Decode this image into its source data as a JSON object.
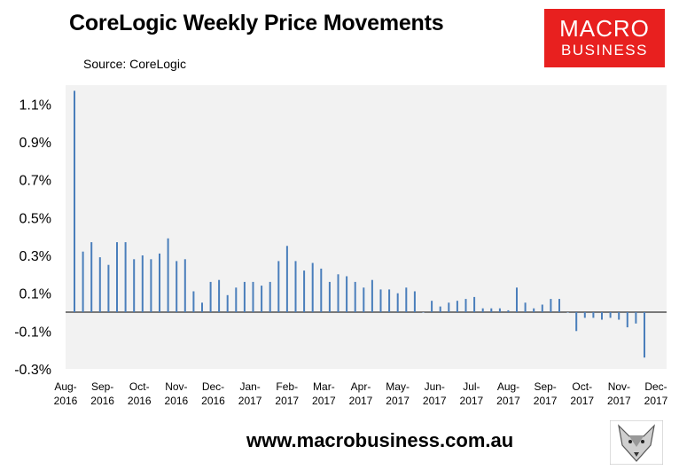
{
  "header": {
    "title": "CoreLogic Weekly Price Movements",
    "source": "Source: CoreLogic"
  },
  "logo": {
    "line1": "MACRO",
    "line2": "BUSINESS"
  },
  "footer": {
    "url": "www.macrobusiness.com.au"
  },
  "colors": {
    "bar": "#4a7ebb",
    "plot_bg": "#f2f2f2",
    "brand_red": "#e8201f"
  },
  "chart_data": {
    "type": "bar",
    "ylim": [
      -0.3,
      1.2
    ],
    "y_ticks": [
      "1.1%",
      "0.9%",
      "0.7%",
      "0.5%",
      "0.3%",
      "0.1%",
      "-0.1%",
      "-0.3%"
    ],
    "x_ticks": [
      {
        "month": "Aug-",
        "year": "2016"
      },
      {
        "month": "Sep-",
        "year": "2016"
      },
      {
        "month": "Oct-",
        "year": "2016"
      },
      {
        "month": "Nov-",
        "year": "2016"
      },
      {
        "month": "Dec-",
        "year": "2016"
      },
      {
        "month": "Jan-",
        "year": "2017"
      },
      {
        "month": "Feb-",
        "year": "2017"
      },
      {
        "month": "Mar-",
        "year": "2017"
      },
      {
        "month": "Apr-",
        "year": "2017"
      },
      {
        "month": "May-",
        "year": "2017"
      },
      {
        "month": "Jun-",
        "year": "2017"
      },
      {
        "month": "Jul-",
        "year": "2017"
      },
      {
        "month": "Aug-",
        "year": "2017"
      },
      {
        "month": "Sep-",
        "year": "2017"
      },
      {
        "month": "Oct-",
        "year": "2017"
      },
      {
        "month": "Nov-",
        "year": "2017"
      },
      {
        "month": "Dec-",
        "year": "2017"
      }
    ],
    "values": [
      1.17,
      0.32,
      0.37,
      0.29,
      0.25,
      0.37,
      0.37,
      0.28,
      0.3,
      0.28,
      0.31,
      0.39,
      0.27,
      0.28,
      0.11,
      0.05,
      0.16,
      0.17,
      0.09,
      0.13,
      0.16,
      0.16,
      0.14,
      0.16,
      0.27,
      0.35,
      0.27,
      0.22,
      0.26,
      0.23,
      0.16,
      0.2,
      0.19,
      0.16,
      0.13,
      0.17,
      0.12,
      0.12,
      0.1,
      0.13,
      0.11,
      0.0,
      0.06,
      0.03,
      0.05,
      0.06,
      0.07,
      0.08,
      0.02,
      0.02,
      0.02,
      0.01,
      0.13,
      0.05,
      0.02,
      0.04,
      0.07,
      0.07,
      0.0,
      -0.1,
      -0.03,
      -0.03,
      -0.04,
      -0.03,
      -0.04,
      -0.08,
      -0.06,
      -0.24
    ]
  }
}
